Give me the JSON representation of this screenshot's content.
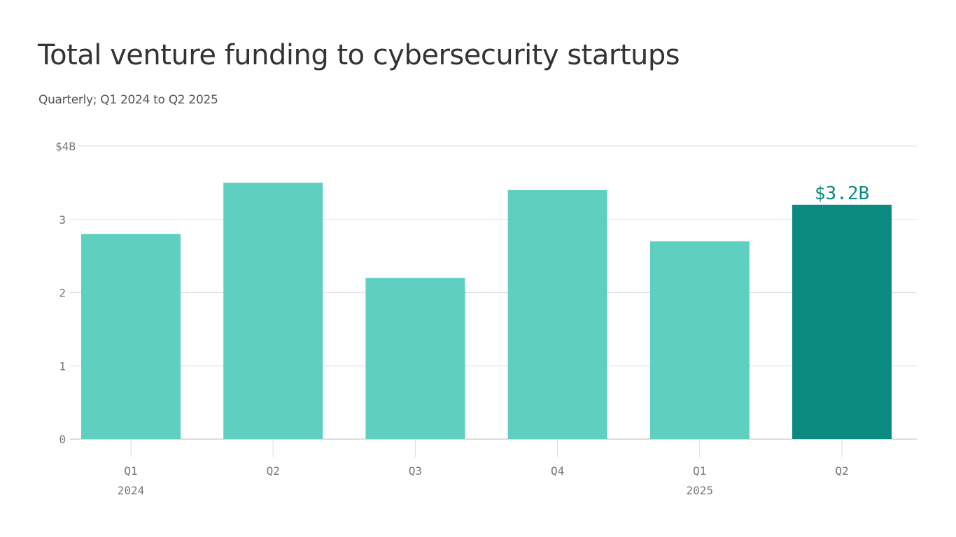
{
  "chart_data": {
    "type": "bar",
    "title": "Total venture funding to cybersecurity startups",
    "subtitle": "Quarterly; Q1 2024 to Q2 2025",
    "categories": [
      "Q1",
      "Q2",
      "Q3",
      "Q4",
      "Q1",
      "Q2"
    ],
    "category_years": [
      "2024",
      "",
      "",
      "",
      "2025",
      ""
    ],
    "values": [
      2.8,
      3.5,
      2.2,
      3.4,
      2.7,
      3.2
    ],
    "unit": "billion USD",
    "ylim": [
      0,
      4
    ],
    "yticks": [
      0,
      1,
      2,
      3,
      4
    ],
    "ytick_labels": [
      "0",
      "1",
      "2",
      "3",
      "$4B"
    ],
    "grid": true,
    "annotations": [
      {
        "index": 5,
        "text": "$3.2B"
      }
    ],
    "colors": {
      "bar": "#5ecfc1",
      "highlight": "#0a8a80",
      "grid": "#dddddd",
      "tick_text": "#777777"
    },
    "highlight_index": 5
  }
}
